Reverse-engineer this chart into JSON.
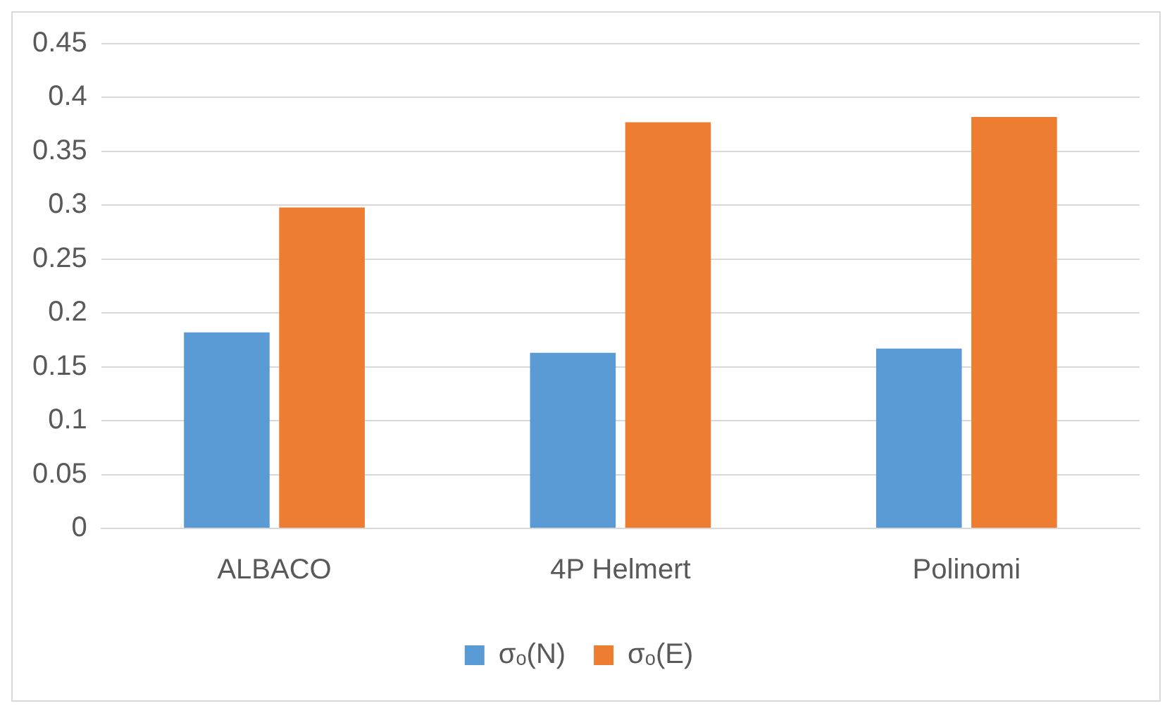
{
  "chart_data": {
    "type": "bar",
    "categories": [
      "ALBACO",
      "4P Helmert",
      "Polinomi"
    ],
    "series": [
      {
        "name": "σₒ(N)",
        "color": "#5b9bd5",
        "values": [
          0.182,
          0.163,
          0.167
        ]
      },
      {
        "name": "σₒ(E)",
        "color": "#ed7d31",
        "values": [
          0.298,
          0.377,
          0.382
        ]
      }
    ],
    "ylim": [
      0,
      0.45
    ],
    "yticks": [
      0,
      0.05,
      0.1,
      0.15,
      0.2,
      0.25,
      0.3,
      0.35,
      0.4,
      0.45
    ],
    "grid": "y",
    "legend": "bottom"
  }
}
